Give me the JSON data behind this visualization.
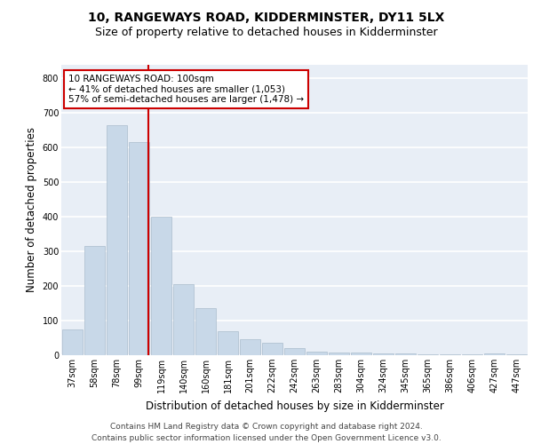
{
  "title1": "10, RANGEWAYS ROAD, KIDDERMINSTER, DY11 5LX",
  "title2": "Size of property relative to detached houses in Kidderminster",
  "xlabel": "Distribution of detached houses by size in Kidderminster",
  "ylabel": "Number of detached properties",
  "categories": [
    "37sqm",
    "58sqm",
    "78sqm",
    "99sqm",
    "119sqm",
    "140sqm",
    "160sqm",
    "181sqm",
    "201sqm",
    "222sqm",
    "242sqm",
    "263sqm",
    "283sqm",
    "304sqm",
    "324sqm",
    "345sqm",
    "365sqm",
    "386sqm",
    "406sqm",
    "427sqm",
    "447sqm"
  ],
  "values": [
    75,
    315,
    665,
    615,
    400,
    205,
    135,
    70,
    45,
    35,
    20,
    10,
    8,
    8,
    5,
    5,
    3,
    2,
    2,
    5,
    3
  ],
  "bar_color": "#c8d8e8",
  "bar_edge_color": "#aabccc",
  "vline_x_index": 3,
  "vline_color": "#cc0000",
  "annotation_text": "10 RANGEWAYS ROAD: 100sqm\n← 41% of detached houses are smaller (1,053)\n57% of semi-detached houses are larger (1,478) →",
  "annotation_box_color": "#ffffff",
  "annotation_box_edge": "#cc0000",
  "ylim": [
    0,
    840
  ],
  "yticks": [
    0,
    100,
    200,
    300,
    400,
    500,
    600,
    700,
    800
  ],
  "background_color": "#e8eef6",
  "grid_color": "#ffffff",
  "footer": "Contains HM Land Registry data © Crown copyright and database right 2024.\nContains public sector information licensed under the Open Government Licence v3.0.",
  "title1_fontsize": 10,
  "title2_fontsize": 9,
  "xlabel_fontsize": 8.5,
  "ylabel_fontsize": 8.5,
  "tick_fontsize": 7,
  "footer_fontsize": 6.5,
  "ann_fontsize": 7.5
}
